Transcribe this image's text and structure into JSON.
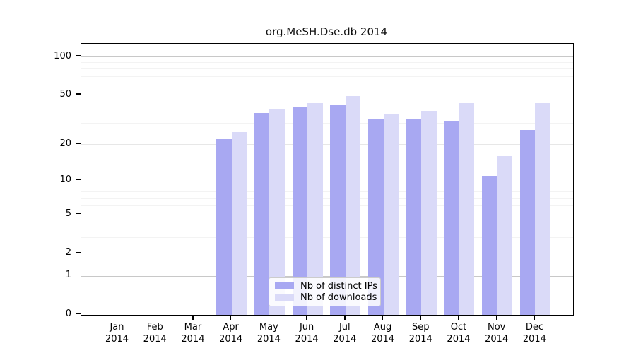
{
  "chart_data": {
    "type": "bar",
    "title": "org.MeSH.Dse.db 2014",
    "categories": [
      "Jan",
      "Feb",
      "Mar",
      "Apr",
      "May",
      "Jun",
      "Jul",
      "Aug",
      "Sep",
      "Oct",
      "Nov",
      "Dec"
    ],
    "tick_year": "2014",
    "series": [
      {
        "name": "Nb of distinct IPs",
        "color": "#a8a8f2",
        "values": [
          0,
          0,
          0,
          22,
          36,
          40,
          41,
          32,
          32,
          31,
          11,
          26
        ]
      },
      {
        "name": "Nb of downloads",
        "color": "#dadaf8",
        "values": [
          0,
          0,
          0,
          25,
          38,
          43,
          49,
          35,
          37,
          43,
          16,
          43
        ]
      }
    ],
    "yscale": "log10(1+x)",
    "ylim": [
      0,
      127
    ],
    "yticks_labeled": [
      0,
      1,
      2,
      5,
      10,
      20,
      50,
      100
    ],
    "grid_decades": [
      1,
      10,
      100
    ],
    "grid_mid": [
      2,
      5,
      20,
      50
    ],
    "grid_minor": [
      3,
      4,
      6,
      7,
      8,
      9,
      30,
      40,
      60,
      70,
      80,
      90
    ],
    "grid": true,
    "legend_position": "lower center",
    "axis_color": "#000000",
    "grid_decade_color": "#c8c8c8",
    "grid_mid_color": "#e7e7e7",
    "grid_minor_color": "#f3f3f3"
  }
}
